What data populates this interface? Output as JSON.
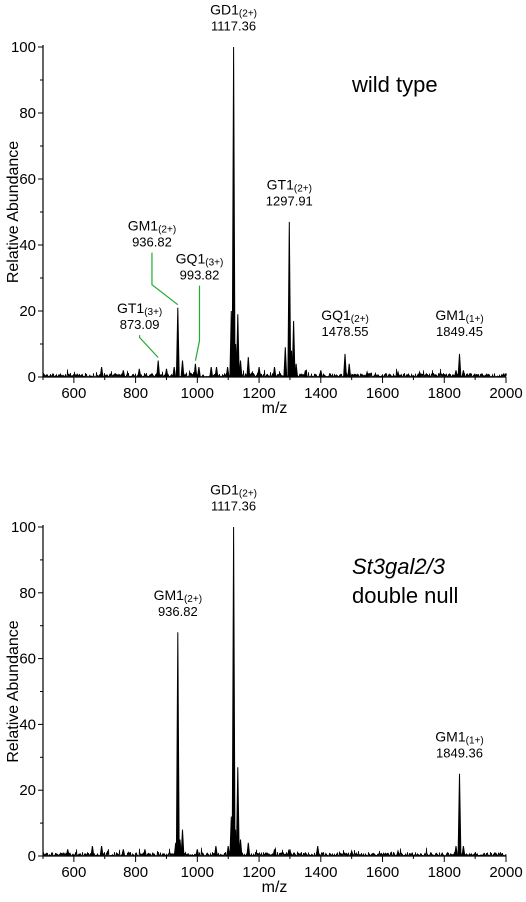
{
  "chart_data": [
    {
      "type": "line",
      "sample_label_lines": [
        "wild type"
      ],
      "sample_label_italic": [
        false
      ],
      "xlabel": "m/z",
      "ylabel": "Relative Abundance",
      "xlim": [
        500,
        2000
      ],
      "ylim": [
        0,
        100
      ],
      "xticks": [
        "600",
        "800",
        "1000",
        "1200",
        "1400",
        "1600",
        "1800",
        "2000"
      ],
      "yticks": [
        "0",
        "20",
        "40",
        "60",
        "80",
        "100"
      ],
      "peaks": [
        {
          "x": 690,
          "y": 3
        },
        {
          "x": 760,
          "y": 2
        },
        {
          "x": 812,
          "y": 2.5
        },
        {
          "x": 873.09,
          "y": 5
        },
        {
          "x": 900,
          "y": 2.5
        },
        {
          "x": 925,
          "y": 3
        },
        {
          "x": 936.82,
          "y": 21
        },
        {
          "x": 952,
          "y": 5
        },
        {
          "x": 993.82,
          "y": 4
        },
        {
          "x": 1005,
          "y": 3
        },
        {
          "x": 1045,
          "y": 3
        },
        {
          "x": 1062,
          "y": 3
        },
        {
          "x": 1098,
          "y": 3
        },
        {
          "x": 1110,
          "y": 20
        },
        {
          "x": 1117.36,
          "y": 100
        },
        {
          "x": 1124,
          "y": 10
        },
        {
          "x": 1131,
          "y": 19
        },
        {
          "x": 1140,
          "y": 5
        },
        {
          "x": 1165,
          "y": 6
        },
        {
          "x": 1200,
          "y": 3
        },
        {
          "x": 1250,
          "y": 3
        },
        {
          "x": 1285,
          "y": 9
        },
        {
          "x": 1297.91,
          "y": 47
        },
        {
          "x": 1305,
          "y": 8
        },
        {
          "x": 1312,
          "y": 17
        },
        {
          "x": 1320,
          "y": 4
        },
        {
          "x": 1350,
          "y": 2
        },
        {
          "x": 1400,
          "y": 2
        },
        {
          "x": 1478.55,
          "y": 7
        },
        {
          "x": 1492,
          "y": 4
        },
        {
          "x": 1550,
          "y": 1.5
        },
        {
          "x": 1650,
          "y": 1.5
        },
        {
          "x": 1720,
          "y": 1.5
        },
        {
          "x": 1838,
          "y": 2
        },
        {
          "x": 1849.45,
          "y": 7
        },
        {
          "x": 1862,
          "y": 2
        }
      ],
      "annotations": [
        {
          "name": "GD1",
          "charge": "(2+)",
          "mz": "1117.36",
          "peak_x": 1117.36,
          "peak_y": 100,
          "label_x": 1117.36,
          "label_y": 105,
          "leader": false
        },
        {
          "name": "GT1",
          "charge": "(2+)",
          "mz": "1297.91",
          "peak_x": 1297.91,
          "peak_y": 47,
          "label_x": 1297.91,
          "label_y": 52,
          "leader": false
        },
        {
          "name": "GM1",
          "charge": "(2+)",
          "mz": "936.82",
          "peak_x": 936.82,
          "peak_y": 21,
          "label_x": 853,
          "label_y": 39.5,
          "leader": true
        },
        {
          "name": "GQ1",
          "charge": "(3+)",
          "mz": "993.82",
          "peak_x": 993.82,
          "peak_y": 4,
          "label_x": 1007,
          "label_y": 29.5,
          "leader": true
        },
        {
          "name": "GT1",
          "charge": "(3+)",
          "mz": "873.09",
          "peak_x": 873.09,
          "peak_y": 5,
          "label_x": 813,
          "label_y": 14.5,
          "leader": true
        },
        {
          "name": "GQ1",
          "charge": "(2+)",
          "mz": "1478.55",
          "peak_x": 1478.55,
          "peak_y": 7,
          "label_x": 1478.55,
          "label_y": 12.5,
          "leader": false
        },
        {
          "name": "GM1",
          "charge": "(1+)",
          "mz": "1849.45",
          "peak_x": 1849.45,
          "peak_y": 7,
          "label_x": 1849.45,
          "label_y": 12.5,
          "leader": false
        }
      ],
      "leader_color": "#22aa33",
      "line_color": "#000000"
    },
    {
      "type": "line",
      "sample_label_lines": [
        "St3gal2/3",
        "double null"
      ],
      "sample_label_italic": [
        true,
        false
      ],
      "xlabel": "m/z",
      "ylabel": "Relative Abundance",
      "xlim": [
        500,
        2000
      ],
      "ylim": [
        0,
        100
      ],
      "xticks": [
        "600",
        "800",
        "1000",
        "1200",
        "1400",
        "1600",
        "1800",
        "2000"
      ],
      "yticks": [
        "0",
        "20",
        "40",
        "60",
        "80",
        "100"
      ],
      "peaks": [
        {
          "x": 580,
          "y": 2
        },
        {
          "x": 660,
          "y": 3
        },
        {
          "x": 690,
          "y": 3
        },
        {
          "x": 760,
          "y": 2
        },
        {
          "x": 830,
          "y": 2
        },
        {
          "x": 930,
          "y": 4
        },
        {
          "x": 936.82,
          "y": 68
        },
        {
          "x": 944,
          "y": 5
        },
        {
          "x": 952,
          "y": 8
        },
        {
          "x": 1000,
          "y": 2
        },
        {
          "x": 1060,
          "y": 3
        },
        {
          "x": 1100,
          "y": 3
        },
        {
          "x": 1110,
          "y": 12
        },
        {
          "x": 1117.36,
          "y": 100
        },
        {
          "x": 1124,
          "y": 8
        },
        {
          "x": 1131,
          "y": 27
        },
        {
          "x": 1140,
          "y": 5
        },
        {
          "x": 1165,
          "y": 4
        },
        {
          "x": 1250,
          "y": 2
        },
        {
          "x": 1300,
          "y": 2
        },
        {
          "x": 1390,
          "y": 3
        },
        {
          "x": 1500,
          "y": 1.5
        },
        {
          "x": 1650,
          "y": 1.5
        },
        {
          "x": 1838,
          "y": 3
        },
        {
          "x": 1849.36,
          "y": 25
        },
        {
          "x": 1862,
          "y": 3
        }
      ],
      "annotations": [
        {
          "name": "GD1",
          "charge": "(2+)",
          "mz": "1117.36",
          "peak_x": 1117.36,
          "peak_y": 100,
          "label_x": 1117.36,
          "label_y": 105,
          "leader": false
        },
        {
          "name": "GM1",
          "charge": "(2+)",
          "mz": "936.82",
          "peak_x": 936.82,
          "peak_y": 68,
          "label_x": 936.82,
          "label_y": 73,
          "leader": false
        },
        {
          "name": "GM1",
          "charge": "(1+)",
          "mz": "1849.36",
          "peak_x": 1849.36,
          "peak_y": 25,
          "label_x": 1849.36,
          "label_y": 30,
          "leader": false
        }
      ],
      "leader_color": "#22aa33",
      "line_color": "#000000"
    }
  ]
}
